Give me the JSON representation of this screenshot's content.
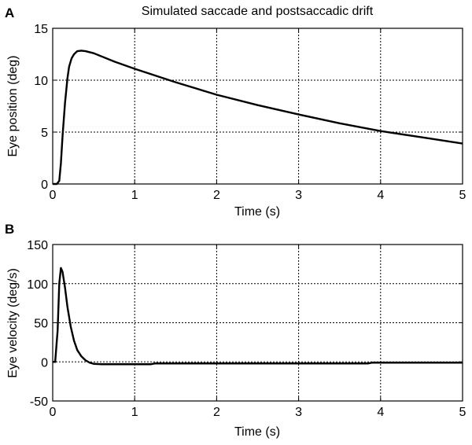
{
  "chart_data": [
    {
      "panel": "A",
      "type": "line",
      "title": "Simulated saccade and postsaccadic drift",
      "xlabel": "Time (s)",
      "ylabel": "Eye position (deg)",
      "xlim": [
        0,
        5
      ],
      "ylim": [
        0,
        15
      ],
      "xticks": [
        "0",
        "1",
        "2",
        "3",
        "4",
        "5"
      ],
      "yticks": [
        "0",
        "5",
        "10",
        "15"
      ],
      "grid": true,
      "series": [
        {
          "x": [
            0,
            0.05,
            0.08,
            0.1,
            0.12,
            0.15,
            0.18,
            0.2,
            0.23,
            0.26,
            0.3,
            0.35,
            0.4,
            0.5,
            0.75,
            1.0,
            1.5,
            2.0,
            2.5,
            3.0,
            3.5,
            4.0,
            4.5,
            5.0
          ],
          "y": [
            0,
            0,
            0.3,
            2.0,
            4.6,
            7.8,
            10.2,
            11.3,
            12.1,
            12.5,
            12.8,
            12.85,
            12.8,
            12.6,
            11.8,
            11.1,
            9.8,
            8.6,
            7.6,
            6.7,
            5.85,
            5.1,
            4.5,
            3.9
          ]
        }
      ]
    },
    {
      "panel": "B",
      "type": "line",
      "title": "",
      "xlabel": "Time (s)",
      "ylabel": "Eye velocity (deg/s)",
      "xlim": [
        0,
        5
      ],
      "ylim": [
        -50,
        150
      ],
      "xticks": [
        "0",
        "1",
        "2",
        "3",
        "4",
        "5"
      ],
      "yticks": [
        "-50",
        "0",
        "50",
        "100",
        "150"
      ],
      "grid": true,
      "series": [
        {
          "x": [
            0,
            0.03,
            0.06,
            0.08,
            0.1,
            0.12,
            0.15,
            0.18,
            0.22,
            0.26,
            0.3,
            0.35,
            0.4,
            0.45,
            0.5,
            0.6,
            0.8,
            1.0,
            1.2,
            1.25,
            2.0,
            3.0,
            3.85,
            3.9,
            4.5,
            5.0
          ],
          "y": [
            0,
            0,
            40,
            100,
            120,
            115,
            95,
            70,
            45,
            27,
            15,
            7,
            2,
            -1,
            -2.5,
            -3,
            -3,
            -3,
            -3,
            -2,
            -2,
            -2,
            -2,
            -1,
            -1,
            -1
          ]
        }
      ]
    }
  ]
}
